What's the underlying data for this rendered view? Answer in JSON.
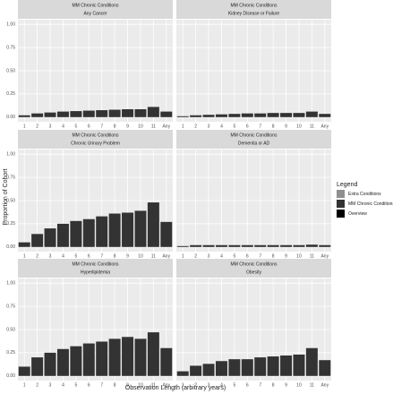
{
  "chart_data": {
    "type": "bar",
    "x_label": "Observation Length (arbitrary years)",
    "y_label": "Proportion of Cohort",
    "legend_title": "Legend",
    "legend": [
      {
        "name": "Extra Conditions",
        "color": "#8f8f8f"
      },
      {
        "name": "MM Chronic Conditions",
        "color": "#333333"
      },
      {
        "name": "Overview",
        "color": "#000000"
      }
    ],
    "ylim": [
      -0.05,
      1.05
    ],
    "yticks": [
      {
        "value": 0,
        "label": "0.00"
      },
      {
        "value": 0.25,
        "label": "0.25"
      },
      {
        "value": 0.5,
        "label": "0.50"
      },
      {
        "value": 0.75,
        "label": "0.75"
      },
      {
        "value": 1,
        "label": "1.00"
      }
    ],
    "grid": true,
    "categories": [
      "1",
      "2",
      "3",
      "4",
      "5",
      "6",
      "7",
      "8",
      "9",
      "10",
      "11",
      "Any"
    ],
    "panels": [
      {
        "facet": "MM Chronic Conditions",
        "title": "Any Cancer",
        "color": "#333333",
        "values": [
          0.02,
          0.04,
          0.05,
          0.06,
          0.065,
          0.07,
          0.075,
          0.08,
          0.085,
          0.085,
          0.11,
          0.06
        ]
      },
      {
        "facet": "MM Chronic Conditions",
        "title": "Kidney Disease or Failure",
        "color": "#333333",
        "values": [
          0.01,
          0.02,
          0.025,
          0.03,
          0.035,
          0.04,
          0.04,
          0.045,
          0.045,
          0.045,
          0.06,
          0.035
        ]
      },
      {
        "facet": "MM Chronic Conditions",
        "title": "Chronic Urinary Problem",
        "color": "#333333",
        "values": [
          0.05,
          0.14,
          0.2,
          0.25,
          0.28,
          0.3,
          0.33,
          0.36,
          0.37,
          0.39,
          0.48,
          0.27
        ]
      },
      {
        "facet": "MM Chronic Conditions",
        "title": "Dementia or AD",
        "color": "#333333",
        "values": [
          0.01,
          0.02,
          0.02,
          0.02,
          0.02,
          0.02,
          0.02,
          0.02,
          0.02,
          0.02,
          0.025,
          0.02
        ]
      },
      {
        "facet": "MM Chronic Conditions",
        "title": "Hyperlipidemia",
        "color": "#333333",
        "values": [
          0.1,
          0.2,
          0.25,
          0.29,
          0.32,
          0.35,
          0.37,
          0.4,
          0.42,
          0.4,
          0.47,
          0.3
        ]
      },
      {
        "facet": "MM Chronic Conditions",
        "title": "Obesity",
        "color": "#333333",
        "values": [
          0.05,
          0.11,
          0.13,
          0.16,
          0.18,
          0.18,
          0.2,
          0.21,
          0.22,
          0.23,
          0.3,
          0.17
        ]
      }
    ]
  }
}
